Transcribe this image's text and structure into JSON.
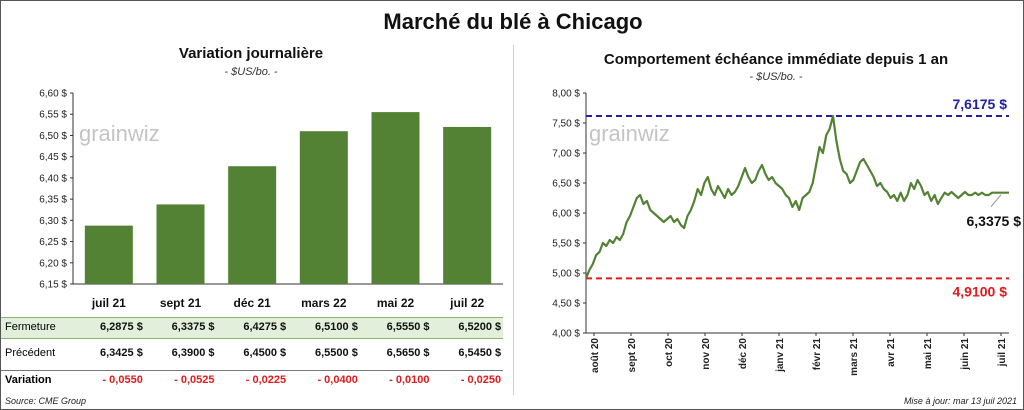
{
  "title": "Marché du blé à Chicago",
  "watermark": "grainwiz",
  "left": {
    "subtitle": "Variation journalière",
    "unit": "- $US/bo. -",
    "rows": {
      "close_label": "Fermeture",
      "prev_label": "Précédent",
      "var_label": "Variation",
      "close_values": [
        "6,2875  $",
        "6,3375  $",
        "6,4275  $",
        "6,5100  $",
        "6,5550  $",
        "6,5200  $"
      ],
      "prev_values": [
        "6,3425  $",
        "6,3900  $",
        "6,4500  $",
        "6,5500  $",
        "6,5650  $",
        "6,5450  $"
      ],
      "var_values": [
        "- 0,0550",
        "- 0,0525",
        "- 0,0225",
        "- 0,0400",
        "- 0,0100",
        "- 0,0250"
      ]
    }
  },
  "right": {
    "subtitle": "Comportement  échéance immédiate depuis 1 an",
    "unit": "- $US/bo. -"
  },
  "footer": {
    "source": "Source: CME Group",
    "updated": "Mise à jour: mar 13 juil 2021"
  },
  "colors": {
    "bar": "#548235",
    "line": "#548235",
    "high": "#1f1fa8",
    "low": "#e31a1c",
    "row_highlight": "#e2efda",
    "negative": "#e31a1c"
  },
  "chart_data": [
    {
      "type": "bar",
      "title": "Variation journalière",
      "categories": [
        "juil 21",
        "sept 21",
        "déc 21",
        "mars 22",
        "mai 22",
        "juil 22"
      ],
      "values": [
        6.2875,
        6.3375,
        6.4275,
        6.51,
        6.555,
        6.52
      ],
      "ylim": [
        6.15,
        6.6
      ],
      "yticks": [
        "6,15 $",
        "6,20 $",
        "6,25 $",
        "6,30 $",
        "6,35 $",
        "6,40 $",
        "6,45 $",
        "6,50 $",
        "6,55 $",
        "6,60 $"
      ],
      "grid": false
    },
    {
      "type": "line",
      "title": "Comportement  échéance immédiate depuis 1 an",
      "xticks": [
        "août 20",
        "sept 20",
        "oct 20",
        "nov 20",
        "déc 20",
        "janv 21",
        "févr 21",
        "mars 21",
        "avr 21",
        "mai 21",
        "juin 21",
        "juil 21"
      ],
      "yticks": [
        "4,00 $",
        "4,50 $",
        "5,00 $",
        "5,50 $",
        "6,00 $",
        "6,50 $",
        "7,00 $",
        "7,50 $",
        "8,00 $"
      ],
      "ylim": [
        4.0,
        8.0
      ],
      "x_index": [
        0,
        2,
        4,
        6,
        8,
        10,
        12,
        14,
        16,
        18,
        20,
        22,
        24,
        26,
        28,
        30,
        32,
        34,
        36,
        38,
        40,
        42,
        44,
        46,
        48,
        50,
        52,
        54,
        56,
        58,
        60,
        62,
        64,
        66,
        68,
        70,
        72,
        74,
        76,
        78,
        80,
        82,
        84,
        86,
        88,
        90,
        92,
        94,
        96,
        98,
        100,
        102,
        104,
        106,
        108,
        110,
        112,
        114,
        116,
        118,
        120,
        122,
        124,
        126,
        128,
        130,
        132,
        134,
        136,
        138,
        140,
        142,
        144,
        146,
        148,
        150,
        152,
        154,
        156,
        158,
        160,
        162,
        164,
        166,
        168,
        170,
        172,
        174,
        176,
        178,
        180,
        182,
        184,
        186,
        188,
        190,
        192,
        194,
        196,
        198,
        200,
        202,
        204,
        206,
        208,
        210,
        212,
        214,
        216,
        218,
        220,
        222,
        224,
        226,
        228,
        230,
        232,
        234,
        236,
        238,
        240,
        242,
        244,
        246,
        248,
        250
      ],
      "values": [
        4.91,
        5.05,
        5.15,
        5.3,
        5.35,
        5.5,
        5.45,
        5.55,
        5.5,
        5.6,
        5.55,
        5.65,
        5.85,
        5.95,
        6.1,
        6.25,
        6.3,
        6.15,
        6.2,
        6.05,
        6.0,
        5.95,
        5.9,
        5.85,
        5.9,
        5.95,
        5.85,
        5.9,
        5.8,
        5.75,
        5.95,
        6.05,
        6.2,
        6.4,
        6.3,
        6.5,
        6.6,
        6.4,
        6.3,
        6.45,
        6.35,
        6.25,
        6.4,
        6.3,
        6.35,
        6.45,
        6.6,
        6.75,
        6.6,
        6.5,
        6.55,
        6.7,
        6.8,
        6.65,
        6.55,
        6.6,
        6.5,
        6.45,
        6.4,
        6.3,
        6.25,
        6.1,
        6.2,
        6.05,
        6.25,
        6.3,
        6.35,
        6.5,
        6.8,
        7.1,
        7.0,
        7.3,
        7.4,
        7.6175,
        7.2,
        6.9,
        6.7,
        6.65,
        6.5,
        6.55,
        6.7,
        6.85,
        6.9,
        6.8,
        6.7,
        6.6,
        6.45,
        6.5,
        6.4,
        6.35,
        6.25,
        6.3,
        6.2,
        6.3375,
        6.2,
        6.3,
        6.5,
        6.4,
        6.55,
        6.45,
        6.3,
        6.35,
        6.2,
        6.3,
        6.15,
        6.25,
        6.3375,
        6.3,
        6.35,
        6.3,
        6.25,
        6.3,
        6.35,
        6.3,
        6.3,
        6.3375,
        6.3,
        6.3375,
        6.3,
        6.3,
        6.3375,
        6.3375,
        6.3375,
        6.3375,
        6.3375,
        6.3375
      ],
      "high": {
        "value": 7.6175,
        "label": "7,6175  $"
      },
      "low": {
        "value": 4.91,
        "label": "4,9100  $"
      },
      "last": {
        "value": 6.3375,
        "label": "6,3375  $"
      }
    }
  ]
}
